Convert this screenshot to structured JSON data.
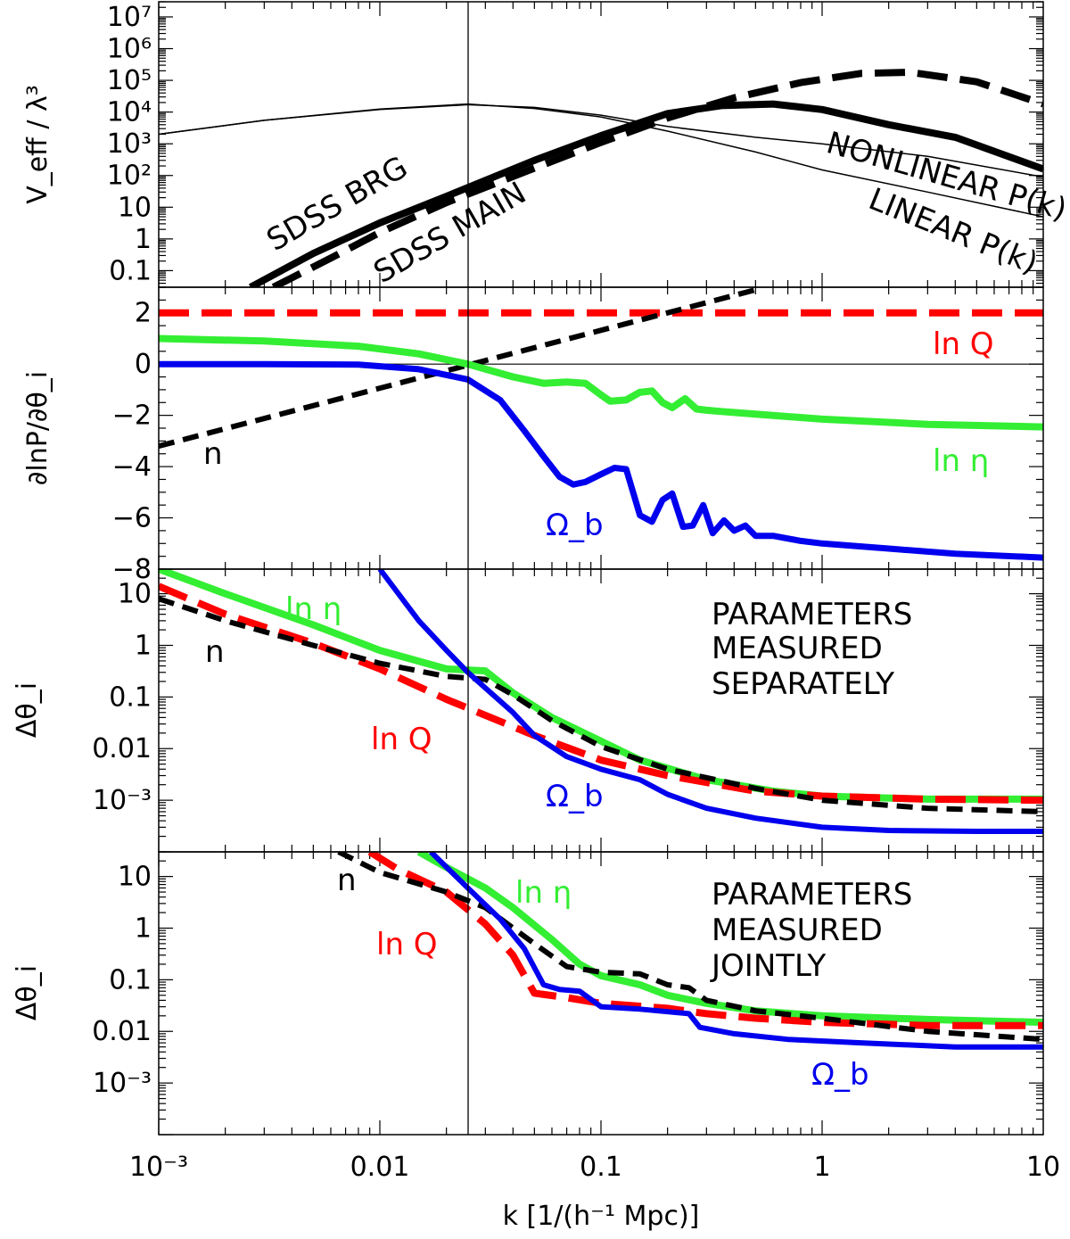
{
  "colors": {
    "black": "#000000",
    "red": "#ff0000",
    "green": "#33ee33",
    "blue": "#0000ee"
  },
  "chart_data": [
    {
      "type": "line",
      "id": "veff",
      "xscale": "log",
      "yscale": "log",
      "xlim": [
        0.001,
        10
      ],
      "ylim": [
        0.03,
        30000000
      ],
      "ylabel": "V_eff / λ³",
      "yticks": [
        {
          "v": 0.1,
          "label": "0.1"
        },
        {
          "v": 1,
          "label": "1"
        },
        {
          "v": 10,
          "label": "10"
        },
        {
          "v": 100,
          "label": "10²"
        },
        {
          "v": 1000,
          "label": "10³"
        },
        {
          "v": 10000,
          "label": "10⁴"
        },
        {
          "v": 100000,
          "label": "10⁵"
        },
        {
          "v": 1000000,
          "label": "10⁶"
        },
        {
          "v": 10000000,
          "label": "10⁷"
        }
      ],
      "series": [
        {
          "name": "SDSS BRG",
          "color": "black",
          "style": "solid",
          "width": 8,
          "x": [
            0.0026,
            0.005,
            0.01,
            0.02,
            0.05,
            0.1,
            0.2,
            0.35,
            0.6,
            1,
            2,
            4,
            10
          ],
          "y": [
            0.03,
            0.35,
            3.2,
            22,
            300,
            1800,
            9000,
            16000,
            18000,
            12000,
            4000,
            1600,
            160
          ]
        },
        {
          "name": "SDSS MAIN",
          "color": "black",
          "style": "dashed",
          "width": 8,
          "x": [
            0.0033,
            0.006,
            0.01,
            0.02,
            0.05,
            0.1,
            0.2,
            0.4,
            0.8,
            1.5,
            2.5,
            5,
            10
          ],
          "y": [
            0.03,
            0.25,
            1.6,
            14,
            170,
            1100,
            6500,
            28000,
            85000,
            165000,
            180000,
            90000,
            18000
          ]
        },
        {
          "name": "NONLINEAR P(k)",
          "color": "black",
          "style": "solid",
          "width": 1.5,
          "x": [
            0.001,
            0.003,
            0.01,
            0.025,
            0.05,
            0.1,
            0.2,
            0.5,
            1,
            3,
            10
          ],
          "y": [
            2000,
            5500,
            12000,
            17000,
            14000,
            8000,
            3500,
            1600,
            1000,
            400,
            90
          ]
        },
        {
          "name": "LINEAR P(k)",
          "color": "black",
          "style": "solid",
          "width": 1.5,
          "x": [
            0.001,
            0.003,
            0.01,
            0.025,
            0.05,
            0.1,
            0.2,
            0.5,
            1,
            3,
            10
          ],
          "y": [
            2000,
            5500,
            12500,
            18000,
            13000,
            7000,
            2500,
            550,
            150,
            30,
            5
          ]
        }
      ],
      "annotations": [
        {
          "text": "SDSS BRG",
          "color": "black"
        },
        {
          "text": "SDSS MAIN",
          "color": "black"
        },
        {
          "text": "NONLINEAR P(k)",
          "color": "black"
        },
        {
          "text": "LINEAR P(k)",
          "color": "black"
        }
      ]
    },
    {
      "type": "line",
      "id": "derivs",
      "xscale": "linear-log",
      "yscale": "linear",
      "xlim": [
        0.001,
        10
      ],
      "ylim": [
        -8,
        3
      ],
      "ylabel": "∂lnP/∂θ_i",
      "yticks": [
        {
          "v": 2,
          "label": "2"
        },
        {
          "v": 0,
          "label": "0"
        },
        {
          "v": -2,
          "label": "−2"
        },
        {
          "v": -4,
          "label": "−4"
        },
        {
          "v": -6,
          "label": "−6"
        },
        {
          "v": -8,
          "label": "−8"
        }
      ],
      "series": [
        {
          "name": "ln Q",
          "color": "red",
          "style": "dashed",
          "width": 8,
          "x": [
            0.001,
            10
          ],
          "y": [
            2,
            2
          ]
        },
        {
          "name": "n",
          "color": "black",
          "style": "dashed",
          "width": 6,
          "x": [
            0.001,
            0.5
          ],
          "y": [
            -3.2,
            2.9
          ]
        },
        {
          "name": "ln η",
          "color": "green",
          "style": "solid",
          "width": 8,
          "x": [
            0.001,
            0.003,
            0.008,
            0.015,
            0.025,
            0.04,
            0.055,
            0.07,
            0.085,
            0.1,
            0.11,
            0.13,
            0.15,
            0.17,
            0.19,
            0.21,
            0.24,
            0.27,
            0.3,
            0.35,
            0.5,
            1,
            3,
            10
          ],
          "y": [
            1,
            0.9,
            0.7,
            0.4,
            0,
            -0.5,
            -0.75,
            -0.7,
            -0.75,
            -1.2,
            -1.45,
            -1.4,
            -1.1,
            -1.05,
            -1.5,
            -1.7,
            -1.35,
            -1.75,
            -1.8,
            -1.85,
            -1.95,
            -2.15,
            -2.35,
            -2.45
          ]
        },
        {
          "name": "Ω_b",
          "color": "blue",
          "style": "solid",
          "width": 7,
          "x": [
            0.001,
            0.003,
            0.008,
            0.015,
            0.025,
            0.035,
            0.045,
            0.055,
            0.065,
            0.075,
            0.085,
            0.1,
            0.115,
            0.13,
            0.15,
            0.17,
            0.19,
            0.21,
            0.235,
            0.26,
            0.29,
            0.32,
            0.36,
            0.4,
            0.45,
            0.5,
            0.6,
            0.8,
            1,
            2,
            4,
            10
          ],
          "y": [
            0,
            0,
            -0.02,
            -0.2,
            -0.6,
            -1.4,
            -2.6,
            -3.6,
            -4.4,
            -4.7,
            -4.6,
            -4.3,
            -4.05,
            -4.1,
            -5.9,
            -6.15,
            -5.3,
            -5.05,
            -6.35,
            -6.3,
            -5.5,
            -6.6,
            -6.1,
            -6.5,
            -6.3,
            -6.7,
            -6.7,
            -6.9,
            -7.0,
            -7.2,
            -7.4,
            -7.55
          ]
        }
      ],
      "annotations": [
        {
          "text": "ln Q",
          "color": "red"
        },
        {
          "text": "ln η",
          "color": "green"
        },
        {
          "text": "n",
          "color": "black"
        },
        {
          "text": "Ω_b",
          "color": "blue"
        }
      ]
    },
    {
      "type": "line",
      "id": "separate",
      "xscale": "log",
      "yscale": "log",
      "xlim": [
        0.001,
        10
      ],
      "ylim": [
        0.0001,
        30
      ],
      "ylabel": "Δθ_i",
      "yticks": [
        {
          "v": 10,
          "label": "10"
        },
        {
          "v": 1,
          "label": "1"
        },
        {
          "v": 0.1,
          "label": "0.1"
        },
        {
          "v": 0.01,
          "label": "0.01"
        },
        {
          "v": 0.001,
          "label": "10⁻³"
        }
      ],
      "series": [
        {
          "name": "ln η",
          "color": "green",
          "style": "solid",
          "width": 8,
          "x": [
            0.001,
            0.002,
            0.005,
            0.01,
            0.02,
            0.03,
            0.04,
            0.06,
            0.1,
            0.15,
            0.3,
            0.6,
            1,
            3,
            10
          ],
          "y": [
            30,
            10,
            2.5,
            0.8,
            0.35,
            0.32,
            0.12,
            0.04,
            0.014,
            0.006,
            0.0025,
            0.0015,
            0.0012,
            0.00105,
            0.00105
          ]
        },
        {
          "name": "ln Q",
          "color": "red",
          "style": "dashed",
          "width": 8,
          "x": [
            0.001,
            0.002,
            0.005,
            0.01,
            0.02,
            0.05,
            0.1,
            0.2,
            0.5,
            1,
            3,
            10
          ],
          "y": [
            14,
            4,
            1.1,
            0.35,
            0.09,
            0.018,
            0.006,
            0.003,
            0.0015,
            0.0012,
            0.00105,
            0.001
          ]
        },
        {
          "name": "n",
          "color": "black",
          "style": "dashed",
          "width": 6,
          "x": [
            0.001,
            0.002,
            0.005,
            0.01,
            0.02,
            0.03,
            0.04,
            0.06,
            0.1,
            0.2,
            0.5,
            1,
            3,
            10
          ],
          "y": [
            8,
            3,
            1,
            0.45,
            0.25,
            0.22,
            0.11,
            0.035,
            0.011,
            0.004,
            0.0017,
            0.001,
            0.0007,
            0.0006
          ]
        },
        {
          "name": "Ω_b",
          "color": "blue",
          "style": "solid",
          "width": 6,
          "x": [
            0.01,
            0.015,
            0.02,
            0.025,
            0.03,
            0.04,
            0.05,
            0.07,
            0.1,
            0.15,
            0.2,
            0.3,
            0.5,
            1,
            2,
            5,
            10
          ],
          "y": [
            30,
            3,
            0.8,
            0.3,
            0.15,
            0.05,
            0.018,
            0.007,
            0.004,
            0.0025,
            0.0013,
            0.0007,
            0.00045,
            0.0003,
            0.00026,
            0.00025,
            0.00025
          ]
        }
      ],
      "annotations": [
        {
          "text": "ln η",
          "color": "green"
        },
        {
          "text": "n",
          "color": "black"
        },
        {
          "text": "ln Q",
          "color": "red"
        },
        {
          "text": "Ω_b",
          "color": "blue"
        },
        {
          "text": "PARAMETERS",
          "color": "black"
        },
        {
          "text": "MEASURED",
          "color": "black"
        },
        {
          "text": "SEPARATELY",
          "color": "black"
        }
      ]
    },
    {
      "type": "line",
      "id": "joint",
      "xscale": "log",
      "yscale": "log",
      "xlim": [
        0.001,
        10
      ],
      "ylim": [
        0.0001,
        30
      ],
      "ylabel": "Δθ_i",
      "xlabel": "k [1/(h⁻¹ Mpc)]",
      "xticks": [
        {
          "v": 0.001,
          "label": "10⁻³"
        },
        {
          "v": 0.01,
          "label": "0.01"
        },
        {
          "v": 0.1,
          "label": "0.1"
        },
        {
          "v": 1,
          "label": "1"
        },
        {
          "v": 10,
          "label": "10"
        }
      ],
      "yticks": [
        {
          "v": 10,
          "label": "10"
        },
        {
          "v": 1,
          "label": "1"
        },
        {
          "v": 0.1,
          "label": "0.1"
        },
        {
          "v": 0.01,
          "label": "0.01"
        },
        {
          "v": 0.001,
          "label": "10⁻³"
        }
      ],
      "series": [
        {
          "name": "ln η",
          "color": "green",
          "style": "solid",
          "width": 8,
          "x": [
            0.015,
            0.02,
            0.03,
            0.04,
            0.06,
            0.08,
            0.1,
            0.15,
            0.2,
            0.3,
            0.5,
            1,
            3,
            10
          ],
          "y": [
            30,
            15,
            6,
            2.5,
            0.6,
            0.2,
            0.12,
            0.08,
            0.05,
            0.035,
            0.025,
            0.02,
            0.017,
            0.015
          ]
        },
        {
          "name": "ln Q",
          "color": "red",
          "style": "dashed",
          "width": 8,
          "x": [
            0.009,
            0.012,
            0.02,
            0.03,
            0.04,
            0.05,
            0.07,
            0.1,
            0.2,
            0.3,
            0.5,
            1,
            3,
            10
          ],
          "y": [
            30,
            14,
            5,
            1.2,
            0.3,
            0.055,
            0.045,
            0.035,
            0.028,
            0.022,
            0.018,
            0.015,
            0.013,
            0.013
          ]
        },
        {
          "name": "n",
          "color": "black",
          "style": "dashed",
          "width": 6,
          "x": [
            0.0065,
            0.01,
            0.02,
            0.03,
            0.05,
            0.07,
            0.1,
            0.15,
            0.2,
            0.25,
            0.3,
            0.5,
            1,
            3,
            10
          ],
          "y": [
            30,
            12,
            5,
            2.5,
            0.5,
            0.18,
            0.14,
            0.13,
            0.08,
            0.07,
            0.04,
            0.025,
            0.018,
            0.01,
            0.007
          ]
        },
        {
          "name": "Ω_b",
          "color": "blue",
          "style": "solid",
          "width": 6,
          "x": [
            0.017,
            0.025,
            0.035,
            0.045,
            0.055,
            0.065,
            0.08,
            0.1,
            0.15,
            0.25,
            0.28,
            0.4,
            0.7,
            1.5,
            4,
            10
          ],
          "y": [
            30,
            6,
            1.5,
            0.4,
            0.08,
            0.065,
            0.06,
            0.03,
            0.027,
            0.022,
            0.012,
            0.009,
            0.007,
            0.006,
            0.005,
            0.005
          ]
        }
      ],
      "annotations": [
        {
          "text": "n",
          "color": "black"
        },
        {
          "text": "ln Q",
          "color": "red"
        },
        {
          "text": "ln η",
          "color": "green"
        },
        {
          "text": "Ω_b",
          "color": "blue"
        },
        {
          "text": "PARAMETERS",
          "color": "black"
        },
        {
          "text": "MEASURED",
          "color": "black"
        },
        {
          "text": "JOINTLY",
          "color": "black"
        }
      ]
    }
  ]
}
